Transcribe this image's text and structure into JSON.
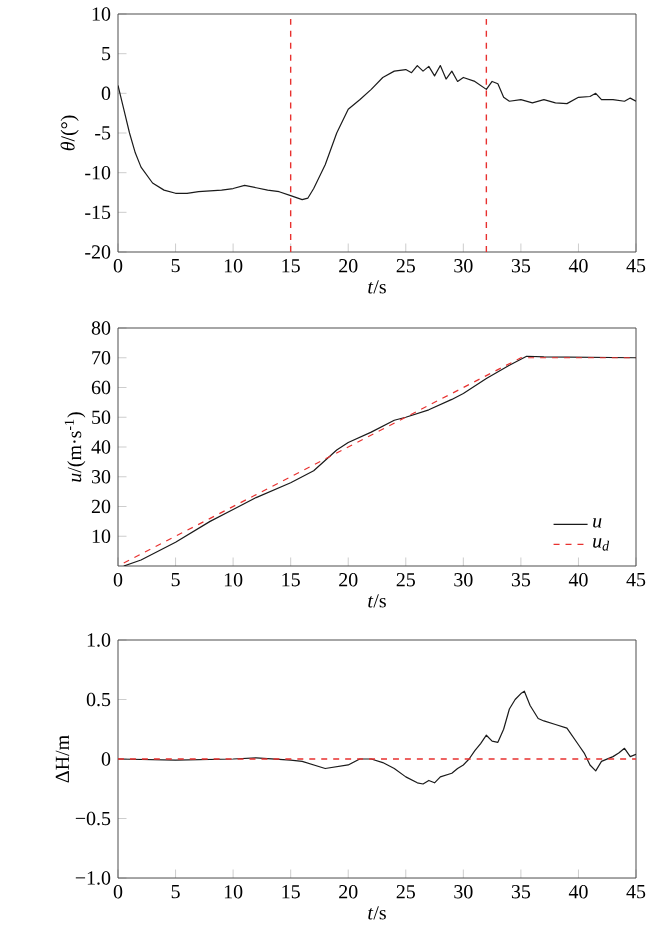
{
  "chart_data": [
    {
      "type": "line",
      "xlabel": "*t*/s",
      "ylabel": "*θ*/(°)",
      "xlim": [
        0,
        45
      ],
      "ylim": [
        -20,
        10
      ],
      "xticks": [
        0,
        5,
        10,
        15,
        20,
        25,
        30,
        35,
        40,
        45
      ],
      "yticks": [
        -20,
        -15,
        -10,
        -5,
        0,
        5,
        10
      ],
      "line_style": "solid",
      "marker": "none",
      "series": [
        {
          "color": "#1a1a1a",
          "x": [
            0,
            0.5,
            1,
            1.5,
            2,
            3,
            4,
            5,
            6,
            7,
            8,
            9,
            10,
            11,
            12,
            13,
            14,
            15,
            16,
            16.5,
            17,
            18,
            19,
            20,
            21,
            22,
            23,
            24,
            25,
            25.5,
            26,
            26.5,
            27,
            27.5,
            28,
            28.5,
            29,
            29.5,
            30,
            31,
            32,
            32.5,
            33,
            33.5,
            34,
            35,
            36,
            37,
            38,
            39,
            40,
            41,
            41.5,
            42,
            43,
            44,
            44.5,
            45
          ],
          "values": [
            1,
            -2,
            -5,
            -7.5,
            -9.3,
            -11.3,
            -12.2,
            -12.6,
            -12.6,
            -12.4,
            -12.3,
            -12.2,
            -12,
            -11.6,
            -11.9,
            -12.2,
            -12.4,
            -12.9,
            -13.4,
            -13.2,
            -12,
            -9,
            -5,
            -2,
            -0.8,
            0.5,
            2,
            2.8,
            3,
            2.6,
            3.5,
            2.8,
            3.4,
            2.2,
            3.5,
            1.8,
            2.8,
            1.5,
            2,
            1.5,
            0.5,
            1.5,
            1.2,
            -0.5,
            -1,
            -0.8,
            -1.2,
            -0.8,
            -1.2,
            -1.3,
            -0.5,
            -0.4,
            0,
            -0.8,
            -0.8,
            -1,
            -0.6,
            -1
          ]
        }
      ],
      "ref_lines": [
        {
          "axis": "x",
          "value": 15,
          "color": "#e8312f",
          "line_style": "dashed"
        },
        {
          "axis": "x",
          "value": 32,
          "color": "#e8312f",
          "line_style": "dashed"
        }
      ]
    },
    {
      "type": "line",
      "xlabel": "*t*/s",
      "ylabel": "*u*/(m·s$^{-1}$)",
      "xlim": [
        0,
        45
      ],
      "ylim": [
        0,
        80
      ],
      "xticks": [
        0,
        5,
        10,
        15,
        20,
        25,
        30,
        35,
        40,
        45
      ],
      "yticks": [
        10,
        20,
        30,
        40,
        50,
        60,
        70,
        80
      ],
      "legend": "bottom right",
      "marker": "none",
      "series": [
        {
          "name": "u",
          "color": "#1a1a1a",
          "line_style": "solid",
          "x": [
            0.5,
            2,
            5,
            8,
            10,
            12,
            15,
            17,
            19,
            20,
            22,
            24,
            25,
            27,
            29,
            30,
            32,
            34,
            35.5,
            37,
            45
          ],
          "values": [
            0,
            2,
            8,
            15,
            19,
            23,
            28,
            32,
            39,
            41.5,
            45,
            49,
            50,
            52.5,
            56,
            58,
            63,
            67.5,
            70.5,
            70.3,
            70
          ]
        },
        {
          "name": "u$_{d}$",
          "color": "#e8312f",
          "line_style": "dashed",
          "x": [
            0.5,
            35,
            45
          ],
          "values": [
            1,
            70,
            70
          ]
        }
      ]
    },
    {
      "type": "line",
      "xlabel": "*t*/s",
      "ylabel": "ΔH/m",
      "xlim": [
        0,
        45
      ],
      "ylim": [
        -1,
        1
      ],
      "xticks": [
        0,
        5,
        10,
        15,
        20,
        25,
        30,
        35,
        40,
        45
      ],
      "yticks": [
        {
          "value": -1,
          "label": "−1.0"
        },
        {
          "value": -0.5,
          "label": "−0.5"
        },
        0,
        0.5,
        {
          "value": 1,
          "label": "1.0"
        }
      ],
      "line_style": "solid",
      "marker": "none",
      "series": [
        {
          "color": "#1a1a1a",
          "x": [
            0,
            5,
            10,
            12,
            15,
            16,
            18,
            20,
            21,
            22,
            23,
            24,
            25,
            26,
            26.5,
            27,
            27.5,
            28,
            29,
            29.5,
            30,
            30.5,
            31,
            31.5,
            32,
            32.5,
            33,
            33.5,
            34,
            34.5,
            35,
            35.3,
            35.8,
            36.5,
            37,
            38,
            39,
            40,
            40.5,
            41,
            41.5,
            42,
            43,
            43.5,
            44,
            44.5,
            45
          ],
          "values": [
            0,
            -0.01,
            0,
            0.01,
            -0.01,
            -0.02,
            -0.08,
            -0.05,
            0,
            0,
            -0.03,
            -0.08,
            -0.15,
            -0.2,
            -0.21,
            -0.18,
            -0.2,
            -0.15,
            -0.12,
            -0.08,
            -0.05,
            0,
            0.07,
            0.13,
            0.2,
            0.15,
            0.14,
            0.25,
            0.42,
            0.5,
            0.55,
            0.57,
            0.45,
            0.34,
            0.32,
            0.29,
            0.26,
            0.12,
            0.05,
            -0.05,
            -0.1,
            -0.02,
            0.02,
            0.05,
            0.09,
            0.02,
            0.04
          ]
        }
      ],
      "ref_lines": [
        {
          "axis": "y",
          "value": 0,
          "color": "#e8312f",
          "line_style": "dashed"
        }
      ]
    }
  ]
}
